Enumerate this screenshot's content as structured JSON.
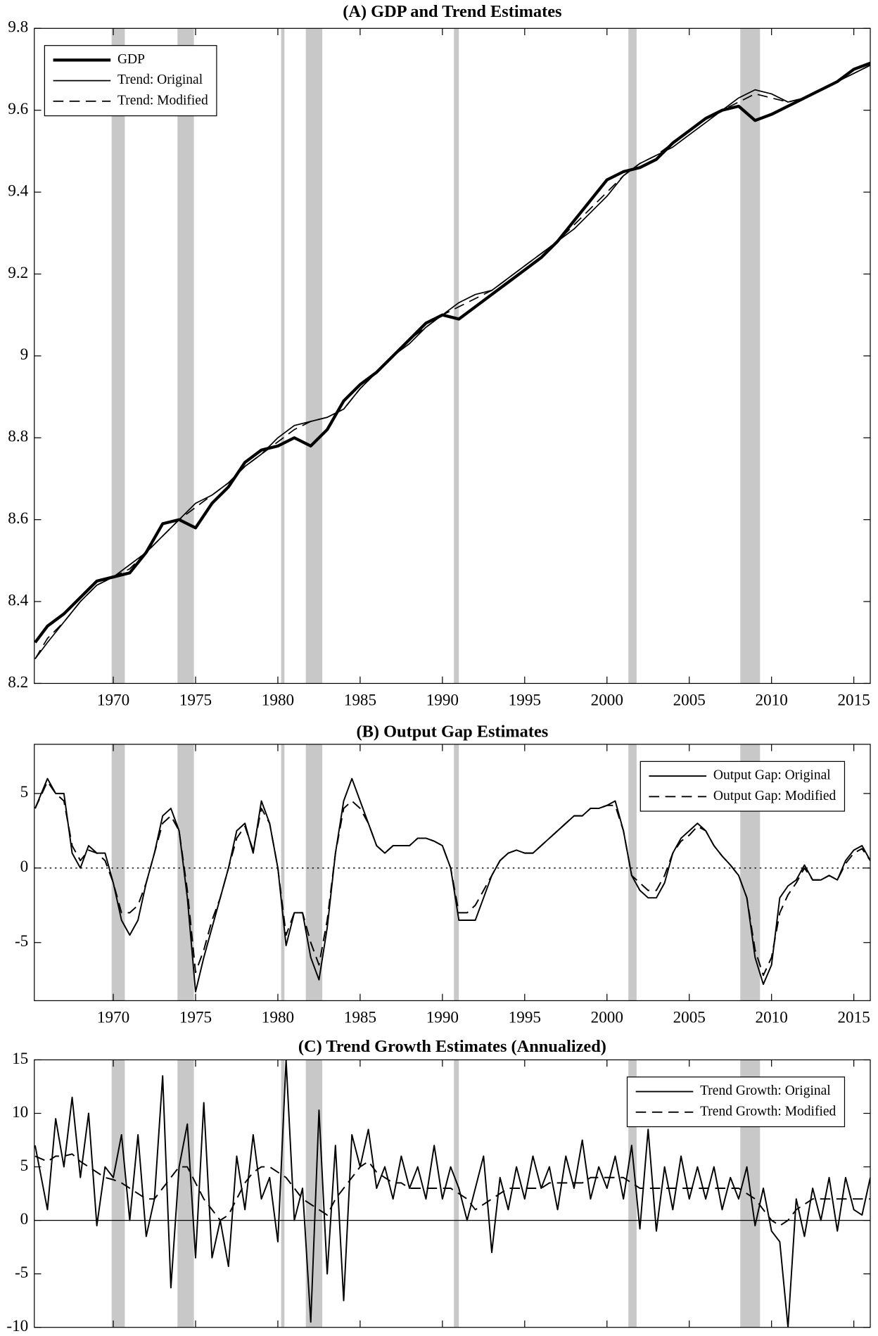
{
  "recessions": [
    [
      1969.9,
      1970.7
    ],
    [
      1973.9,
      1974.9
    ],
    [
      1980.2,
      1980.4
    ],
    [
      1981.7,
      1982.7
    ],
    [
      1990.7,
      1991.0
    ],
    [
      2001.3,
      2001.8
    ],
    [
      2008.1,
      2009.3
    ]
  ],
  "recession_color": "#c8c8c8",
  "chart_data": [
    {
      "type": "line",
      "title": "(A) GDP and Trend Estimates",
      "x": [
        1965.25,
        1966,
        1967,
        1968,
        1969,
        1970,
        1971,
        1972,
        1973,
        1974,
        1975,
        1976,
        1977,
        1978,
        1979,
        1980,
        1981,
        1982,
        1983,
        1984,
        1985,
        1986,
        1987,
        1988,
        1989,
        1990,
        1991,
        1992,
        1993,
        1994,
        1995,
        1996,
        1997,
        1998,
        1999,
        2000,
        2001,
        2002,
        2003,
        2004,
        2005,
        2006,
        2007,
        2008,
        2009,
        2010,
        2011,
        2012,
        2013,
        2014,
        2015,
        2016
      ],
      "series": [
        {
          "name": "GDP",
          "color": "#000000",
          "linewidth": 3.5,
          "dash": "solid",
          "values": [
            8.3,
            8.34,
            8.37,
            8.41,
            8.45,
            8.46,
            8.47,
            8.52,
            8.59,
            8.6,
            8.58,
            8.64,
            8.68,
            8.74,
            8.77,
            8.78,
            8.8,
            8.78,
            8.82,
            8.89,
            8.93,
            8.96,
            9.0,
            9.04,
            9.08,
            9.1,
            9.09,
            9.12,
            9.15,
            9.18,
            9.21,
            9.24,
            9.28,
            9.33,
            9.38,
            9.43,
            9.45,
            9.46,
            9.48,
            9.52,
            9.55,
            9.58,
            9.6,
            9.61,
            9.575,
            9.59,
            9.61,
            9.63,
            9.65,
            9.67,
            9.7,
            9.715
          ]
        },
        {
          "name": "Trend: Original",
          "color": "#000000",
          "linewidth": 1.4,
          "dash": "solid",
          "values": [
            8.26,
            8.3,
            8.35,
            8.4,
            8.44,
            8.46,
            8.49,
            8.52,
            8.56,
            8.6,
            8.64,
            8.66,
            8.69,
            8.73,
            8.76,
            8.8,
            8.83,
            8.84,
            8.85,
            8.87,
            8.92,
            8.96,
            9.0,
            9.03,
            9.07,
            9.1,
            9.13,
            9.15,
            9.16,
            9.19,
            9.22,
            9.25,
            9.28,
            9.31,
            9.35,
            9.39,
            9.44,
            9.47,
            9.49,
            9.51,
            9.54,
            9.57,
            9.6,
            9.63,
            9.65,
            9.64,
            9.62,
            9.63,
            9.65,
            9.67,
            9.69,
            9.71
          ]
        },
        {
          "name": "Trend: Modified",
          "color": "#000000",
          "linewidth": 1.4,
          "dash": "dashed",
          "values": [
            8.26,
            8.31,
            8.35,
            8.4,
            8.44,
            8.46,
            8.48,
            8.52,
            8.56,
            8.6,
            8.63,
            8.66,
            8.69,
            8.73,
            8.76,
            8.79,
            8.82,
            8.84,
            8.85,
            8.87,
            8.92,
            8.96,
            9.0,
            9.04,
            9.07,
            9.1,
            9.12,
            9.14,
            9.16,
            9.19,
            9.22,
            9.25,
            9.28,
            9.32,
            9.36,
            9.4,
            9.44,
            9.47,
            9.49,
            9.52,
            9.55,
            9.58,
            9.6,
            9.62,
            9.64,
            9.63,
            9.62,
            9.63,
            9.65,
            9.67,
            9.69,
            9.71
          ]
        }
      ],
      "xlim": [
        1965.2,
        2016
      ],
      "xticks": [
        1970,
        1975,
        1980,
        1985,
        1990,
        1995,
        2000,
        2005,
        2010,
        2015
      ],
      "ylim": [
        8.2,
        9.8
      ],
      "yticks": [
        8.2,
        8.4,
        8.6,
        8.8,
        9,
        9.2,
        9.4,
        9.6,
        9.8
      ],
      "legend": "upper left"
    },
    {
      "type": "line",
      "title": "(B) Output Gap Estimates",
      "x": [
        1965.25,
        1966,
        1966.5,
        1967,
        1967.5,
        1968,
        1968.5,
        1969,
        1969.5,
        1970,
        1970.5,
        1971,
        1971.5,
        1972,
        1972.5,
        1973,
        1973.5,
        1974,
        1974.5,
        1975,
        1975.5,
        1976,
        1976.5,
        1977,
        1977.5,
        1978,
        1978.5,
        1979,
        1979.5,
        1980,
        1980.5,
        1981,
        1981.5,
        1982,
        1982.5,
        1983,
        1983.5,
        1984,
        1984.5,
        1985,
        1985.5,
        1986,
        1986.5,
        1987,
        1987.5,
        1988,
        1988.5,
        1989,
        1989.5,
        1990,
        1990.5,
        1991,
        1991.5,
        1992,
        1992.5,
        1993,
        1993.5,
        1994,
        1994.5,
        1995,
        1995.5,
        1996,
        1996.5,
        1997,
        1997.5,
        1998,
        1998.5,
        1999,
        1999.5,
        2000,
        2000.5,
        2001,
        2001.5,
        2002,
        2002.5,
        2003,
        2003.5,
        2004,
        2004.5,
        2005,
        2005.5,
        2006,
        2006.5,
        2007,
        2007.5,
        2008,
        2008.5,
        2009,
        2009.5,
        2010,
        2010.5,
        2011,
        2011.5,
        2012,
        2012.5,
        2013,
        2013.5,
        2014,
        2014.5,
        2015,
        2015.5,
        2016
      ],
      "series": [
        {
          "name": "Output Gap: Original",
          "color": "#000000",
          "linewidth": 1.6,
          "dash": "solid",
          "values": [
            4,
            6,
            5,
            5,
            1,
            0,
            1.5,
            1,
            1,
            -1,
            -3.5,
            -4.5,
            -3.5,
            -1,
            1,
            3.5,
            4,
            2.5,
            -2,
            -8.3,
            -6,
            -4,
            -2,
            0,
            2.5,
            3,
            1,
            4.5,
            3,
            0,
            -5.2,
            -3,
            -3,
            -6,
            -7.5,
            -4,
            1,
            4.5,
            6,
            4.5,
            3,
            1.5,
            1,
            1.5,
            1.5,
            1.5,
            2,
            2,
            1.8,
            1.5,
            0,
            -3.5,
            -3.5,
            -3.5,
            -2,
            -0.5,
            0.5,
            1,
            1.2,
            1,
            1,
            1.5,
            2,
            2.5,
            3,
            3.5,
            3.5,
            4,
            4,
            4.2,
            4.5,
            2.5,
            -0.5,
            -1.5,
            -2,
            -2,
            -1,
            1,
            2,
            2.5,
            3,
            2.5,
            1.5,
            0.8,
            0.2,
            -0.5,
            -2,
            -6,
            -7.8,
            -6.5,
            -2,
            -1.2,
            -0.8,
            0.2,
            -0.8,
            -0.8,
            -0.5,
            -0.8,
            0.5,
            1.2,
            1.5,
            0.5
          ]
        },
        {
          "name": "Output Gap: Modified",
          "color": "#000000",
          "linewidth": 1.6,
          "dash": "dashed",
          "values": [
            4,
            5.8,
            5,
            4.5,
            1.5,
            0.5,
            1.2,
            1,
            0.5,
            -1,
            -3,
            -3,
            -2.5,
            -1,
            1,
            3,
            3.5,
            2.5,
            -1.5,
            -7,
            -5.5,
            -3.5,
            -2,
            0,
            2,
            2.8,
            1.2,
            4,
            3,
            0,
            -4.5,
            -3,
            -3,
            -5,
            -6.5,
            -3.5,
            1,
            4,
            4.5,
            4,
            3,
            1.5,
            1,
            1.5,
            1.5,
            1.5,
            2,
            2,
            1.8,
            1.5,
            0,
            -3,
            -3,
            -2.5,
            -1.5,
            -0.5,
            0.5,
            1,
            1.2,
            1,
            1,
            1.5,
            2,
            2.5,
            3,
            3.5,
            3.5,
            4,
            4,
            4.2,
            4.2,
            2.5,
            -0.5,
            -1,
            -1.5,
            -1.5,
            -0.5,
            1,
            1.8,
            2.2,
            2.8,
            2.5,
            1.5,
            0.8,
            0.2,
            -0.5,
            -2,
            -5.5,
            -7.2,
            -6,
            -3,
            -1.8,
            -1,
            0,
            -0.8,
            -0.8,
            -0.5,
            -0.8,
            0.3,
            1,
            1.3,
            0.5
          ]
        }
      ],
      "xlim": [
        1965.2,
        2016
      ],
      "xticks": [
        1970,
        1975,
        1980,
        1985,
        1990,
        1995,
        2000,
        2005,
        2010,
        2015
      ],
      "ylim": [
        -8.9,
        8.3
      ],
      "yticks": [
        -5,
        0,
        5
      ],
      "zero_line": "dotted",
      "legend": "upper right"
    },
    {
      "type": "line",
      "title": "(C) Trend Growth Estimates (Annualized)",
      "x": [
        1965.25,
        1966,
        1966.5,
        1967,
        1967.5,
        1968,
        1968.5,
        1969,
        1969.5,
        1970,
        1970.5,
        1971,
        1971.5,
        1972,
        1972.5,
        1973,
        1973.5,
        1974,
        1974.5,
        1975,
        1975.5,
        1976,
        1976.5,
        1977,
        1977.5,
        1978,
        1978.5,
        1979,
        1979.5,
        1980,
        1980.5,
        1981,
        1981.5,
        1982,
        1982.5,
        1983,
        1983.5,
        1984,
        1984.5,
        1985,
        1985.5,
        1986,
        1986.5,
        1987,
        1987.5,
        1988,
        1988.5,
        1989,
        1989.5,
        1990,
        1990.5,
        1991,
        1991.5,
        1992,
        1992.5,
        1993,
        1993.5,
        1994,
        1994.5,
        1995,
        1995.5,
        1996,
        1996.5,
        1997,
        1997.5,
        1998,
        1998.5,
        1999,
        1999.5,
        2000,
        2000.5,
        2001,
        2001.5,
        2002,
        2002.5,
        2003,
        2003.5,
        2004,
        2004.5,
        2005,
        2005.5,
        2006,
        2006.5,
        2007,
        2007.5,
        2008,
        2008.5,
        2009,
        2009.5,
        2010,
        2010.5,
        2011,
        2011.5,
        2012,
        2012.5,
        2013,
        2013.5,
        2014,
        2014.5,
        2015,
        2015.5,
        2016
      ],
      "series": [
        {
          "name": "Trend Growth: Original",
          "color": "#000000",
          "linewidth": 1.6,
          "dash": "solid",
          "values": [
            7,
            1,
            9.5,
            5,
            11.5,
            4,
            10,
            -0.5,
            5,
            4,
            8,
            0,
            8,
            -1.5,
            2,
            13.5,
            -6.3,
            5,
            9,
            -3.5,
            11,
            -3.5,
            0,
            -4.3,
            6,
            1,
            8,
            2,
            4,
            -2,
            15,
            0,
            3,
            -9.5,
            10.3,
            -5,
            7,
            -7.5,
            8,
            5,
            8.5,
            3,
            5,
            2,
            6,
            3,
            5,
            2,
            7,
            2,
            5,
            3,
            0,
            3,
            6,
            -3,
            4,
            1,
            5,
            2,
            6,
            3,
            5,
            1,
            6,
            3,
            7.5,
            2,
            5,
            3,
            6,
            2,
            7,
            -0.8,
            8.5,
            -1,
            5,
            1,
            6,
            2,
            5,
            2,
            5,
            1,
            4,
            2,
            5,
            -0.5,
            3,
            -1,
            -2,
            -10,
            2,
            -1.5,
            3,
            0,
            4,
            -1,
            4,
            1,
            0.5,
            4
          ]
        },
        {
          "name": "Trend Growth: Modified",
          "color": "#000000",
          "linewidth": 1.6,
          "dash": "dashed",
          "values": [
            6,
            5.5,
            6,
            6,
            6.2,
            5.5,
            5,
            4.5,
            4,
            3.8,
            3.5,
            3,
            2.5,
            2,
            2,
            3,
            4,
            5,
            5,
            3.5,
            2,
            1,
            0,
            0.5,
            2,
            3.5,
            4.5,
            5,
            5,
            4.5,
            4,
            3,
            2,
            1.5,
            1,
            0.5,
            2,
            3,
            4,
            5,
            5.5,
            4.5,
            4,
            3.5,
            3.5,
            3,
            3,
            3,
            3,
            3,
            3,
            2.5,
            2,
            1,
            1.5,
            2,
            2.5,
            3,
            3,
            3,
            3,
            3,
            3.5,
            3.5,
            3.5,
            3.5,
            3.5,
            4,
            4,
            4,
            4,
            4,
            3.5,
            3,
            3,
            3,
            3,
            3,
            3,
            3,
            3,
            3,
            3,
            3,
            3,
            3,
            2.5,
            2,
            1,
            0,
            -0.5,
            0,
            1,
            1.5,
            2,
            2,
            2,
            2,
            2,
            2,
            2,
            2
          ]
        }
      ],
      "xlim": [
        1965.2,
        2016
      ],
      "xticks": [
        1970,
        1975,
        1980,
        1985,
        1990,
        1995,
        2000,
        2005,
        2010,
        2015
      ],
      "ylim": [
        -10,
        15
      ],
      "yticks": [
        -10,
        -5,
        0,
        5,
        10,
        15
      ],
      "zero_line": "solid",
      "legend": "upper right"
    }
  ]
}
